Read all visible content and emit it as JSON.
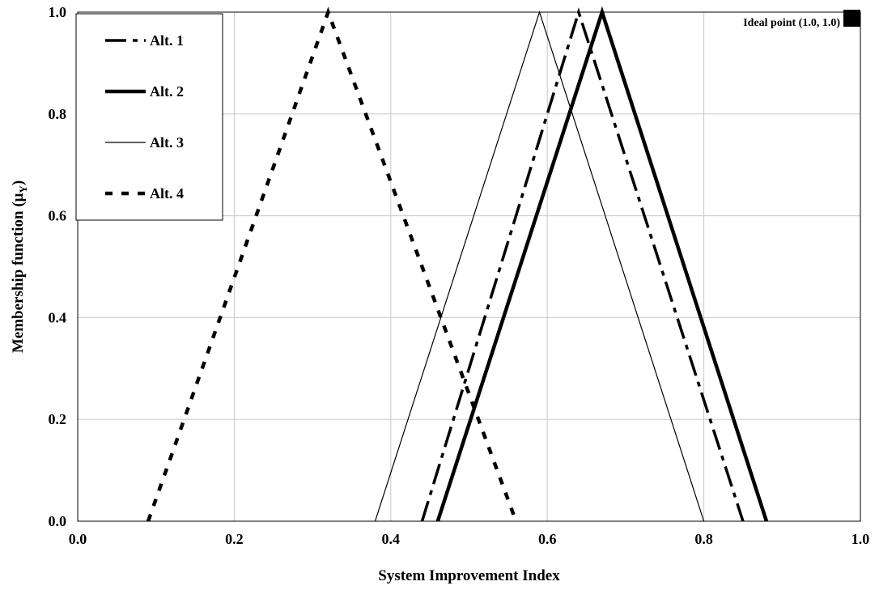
{
  "chart_data": {
    "type": "line",
    "xlabel": "System Improvement Index",
    "ylabel_main": "Membership function (μ",
    "ylabel_sub": "Y",
    "ylabel_close": ")",
    "xlim": [
      0.0,
      1.0
    ],
    "ylim": [
      0.0,
      1.0
    ],
    "x_ticks": [
      0.0,
      0.2,
      0.4,
      0.6,
      0.8,
      1.0
    ],
    "x_tick_labels": [
      "0.0",
      "0.2",
      "0.4",
      "0.6",
      "0.8",
      "1.0"
    ],
    "y_ticks": [
      0.0,
      0.2,
      0.4,
      0.6,
      0.8,
      1.0
    ],
    "y_tick_labels": [
      "0.0",
      "0.2",
      "0.4",
      "0.6",
      "0.8",
      "1.0"
    ],
    "grid": true,
    "legend_position": "top-left",
    "series": [
      {
        "name": "Alt. 1",
        "style": "dash-dot",
        "x": [
          0.44,
          0.64,
          0.85
        ],
        "y": [
          0.0,
          1.0,
          0.0
        ]
      },
      {
        "name": "Alt. 2",
        "style": "thick-solid",
        "x": [
          0.46,
          0.67,
          0.88
        ],
        "y": [
          0.0,
          1.0,
          0.0
        ]
      },
      {
        "name": "Alt. 3",
        "style": "thin-solid",
        "x": [
          0.38,
          0.59,
          0.8
        ],
        "y": [
          0.0,
          1.0,
          0.0
        ]
      },
      {
        "name": "Alt. 4",
        "style": "dotted",
        "x": [
          0.09,
          0.32,
          0.56
        ],
        "y": [
          0.0,
          1.0,
          0.0
        ]
      }
    ],
    "annotation": {
      "text": "Ideal point (1.0, 1.0)",
      "x": 1.0,
      "y": 1.0
    }
  }
}
